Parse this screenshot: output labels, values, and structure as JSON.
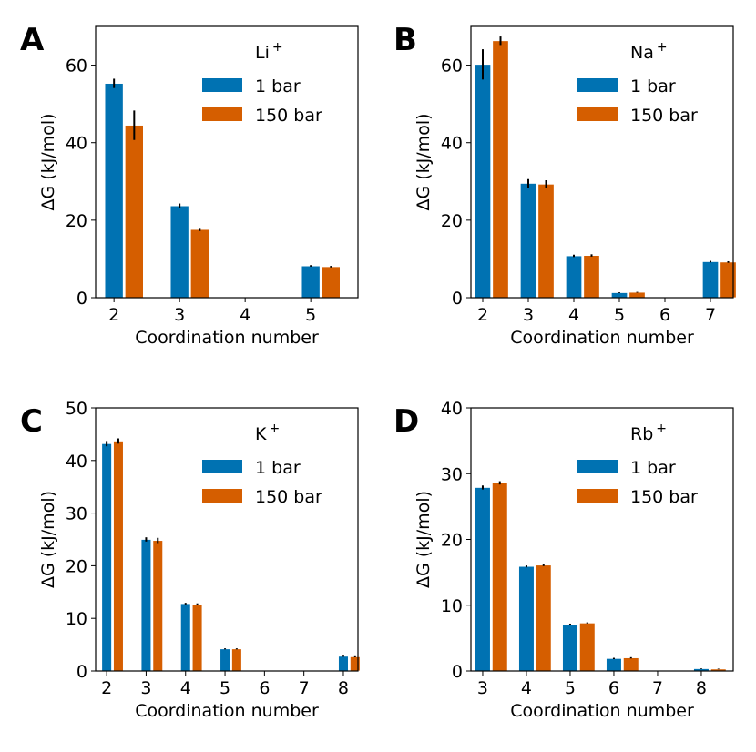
{
  "colors": {
    "bar_1": "#0072b2",
    "bar_150": "#d55e00",
    "error": "#000000"
  },
  "chart_data": [
    {
      "type": "bar",
      "panel_label": "A",
      "legend_title": "Li",
      "legend_sup": "+",
      "xlabel": "Coordination number",
      "ylabel": "ΔG (kJ/mol)",
      "categories": [
        2,
        3,
        4,
        5
      ],
      "xlim": [
        1.72,
        5.72
      ],
      "ylim": [
        0,
        70
      ],
      "yticks": [
        0,
        20,
        40,
        60
      ],
      "series": [
        {
          "name": "1 bar",
          "values": [
            55.3,
            23.7,
            null,
            8.2
          ],
          "errors": [
            1.2,
            0.6,
            null,
            0.2
          ]
        },
        {
          "name": "150 bar",
          "values": [
            44.5,
            17.6,
            null,
            8.0
          ],
          "errors": [
            3.8,
            0.4,
            null,
            0.2
          ]
        }
      ],
      "legend_placement": "upper-right"
    },
    {
      "type": "bar",
      "panel_label": "B",
      "legend_title": "Na",
      "legend_sup": "+",
      "xlabel": "Coordination number",
      "ylabel": "ΔG (kJ/mol)",
      "categories": [
        2,
        3,
        4,
        5,
        6,
        7
      ],
      "xlim": [
        1.74,
        7.5
      ],
      "ylim": [
        0,
        70
      ],
      "yticks": [
        0,
        20,
        40,
        60
      ],
      "series": [
        {
          "name": "1 bar",
          "values": [
            60.2,
            29.5,
            10.8,
            1.3,
            null,
            9.3
          ],
          "errors": [
            3.9,
            1.1,
            0.3,
            0.1,
            null,
            0.2
          ]
        },
        {
          "name": "150 bar",
          "values": [
            66.3,
            29.3,
            10.9,
            1.4,
            null,
            9.2
          ],
          "errors": [
            1.1,
            1.0,
            0.3,
            0.1,
            null,
            0.2
          ]
        }
      ],
      "legend_placement": "upper-right"
    },
    {
      "type": "bar",
      "panel_label": "C",
      "legend_title": "K",
      "legend_sup": "+",
      "xlabel": "Coordination number",
      "ylabel": "ΔG (kJ/mol)",
      "categories": [
        2,
        3,
        4,
        5,
        6,
        7,
        8
      ],
      "xlim": [
        1.72,
        8.37
      ],
      "ylim": [
        0,
        50
      ],
      "yticks": [
        0,
        10,
        20,
        30,
        40,
        50
      ],
      "series": [
        {
          "name": "1 bar",
          "values": [
            43.2,
            25.0,
            12.8,
            4.2,
            null,
            null,
            2.8
          ],
          "errors": [
            0.5,
            0.4,
            0.15,
            0.1,
            null,
            null,
            0.1
          ]
        },
        {
          "name": "150 bar",
          "values": [
            43.7,
            24.8,
            12.7,
            4.2,
            null,
            null,
            2.7
          ],
          "errors": [
            0.5,
            0.5,
            0.15,
            0.1,
            null,
            null,
            0.1
          ]
        }
      ],
      "legend_placement": "upper-right"
    },
    {
      "type": "bar",
      "panel_label": "D",
      "legend_title": "Rb",
      "legend_sup": "+",
      "xlabel": "Coordination number",
      "ylabel": "ΔG (kJ/mol)",
      "categories": [
        3,
        4,
        5,
        6,
        7,
        8
      ],
      "xlim": [
        2.73,
        8.73
      ],
      "ylim": [
        0,
        40
      ],
      "yticks": [
        0,
        10,
        20,
        30,
        40
      ],
      "series": [
        {
          "name": "1 bar",
          "values": [
            27.9,
            15.9,
            7.1,
            1.9,
            null,
            0.35
          ],
          "errors": [
            0.3,
            0.15,
            0.1,
            0.1,
            null,
            0.05
          ]
        },
        {
          "name": "150 bar",
          "values": [
            28.6,
            16.1,
            7.3,
            2.0,
            null,
            0.3
          ],
          "errors": [
            0.25,
            0.15,
            0.1,
            0.1,
            null,
            0.05
          ]
        }
      ],
      "legend_placement": "upper-right"
    }
  ]
}
